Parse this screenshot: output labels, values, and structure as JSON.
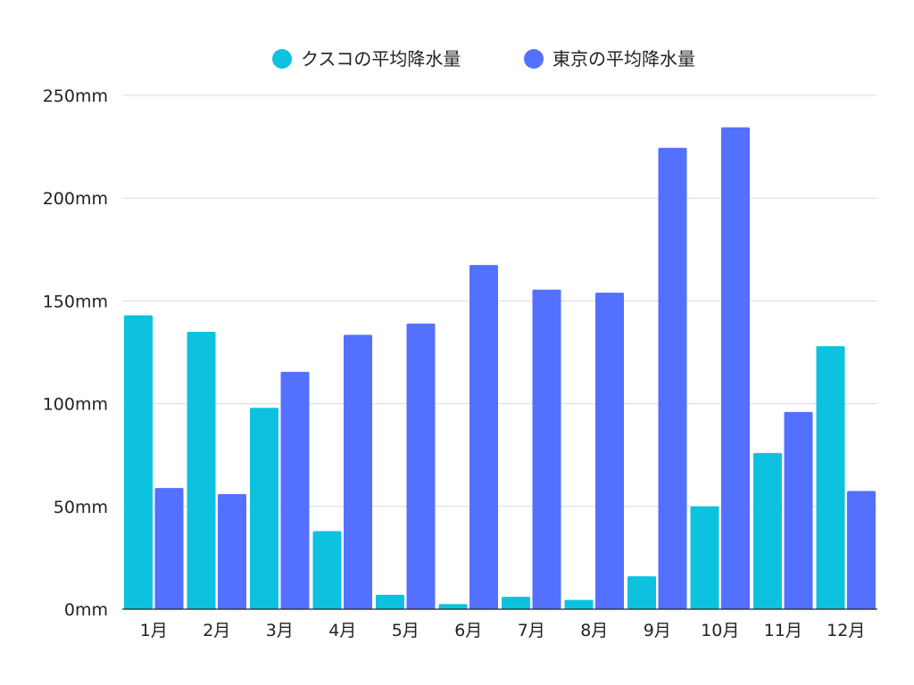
{
  "chart_data": {
    "type": "bar",
    "title": "",
    "xlabel": "",
    "ylabel": "",
    "categories": [
      "1月",
      "2月",
      "3月",
      "4月",
      "5月",
      "6月",
      "7月",
      "8月",
      "9月",
      "10月",
      "11月",
      "12月"
    ],
    "series": [
      {
        "name": "クスコの平均降水量",
        "color": "#0dc2df",
        "values": [
          143,
          135,
          98,
          38,
          7,
          2.5,
          6,
          4.5,
          16,
          50,
          76,
          128
        ]
      },
      {
        "name": "東京の平均降水量",
        "color": "#5470ff",
        "values": [
          59,
          56,
          115.5,
          133.5,
          139,
          167.5,
          155.5,
          154,
          224.5,
          234.5,
          96,
          57.5
        ]
      }
    ],
    "ylim": [
      0,
      250
    ],
    "yticks": [
      0,
      50,
      100,
      150,
      200,
      250
    ],
    "ytick_labels": [
      "0mm",
      "50mm",
      "100mm",
      "150mm",
      "200mm",
      "250mm"
    ],
    "grid": true,
    "legend_position": "top-center"
  }
}
